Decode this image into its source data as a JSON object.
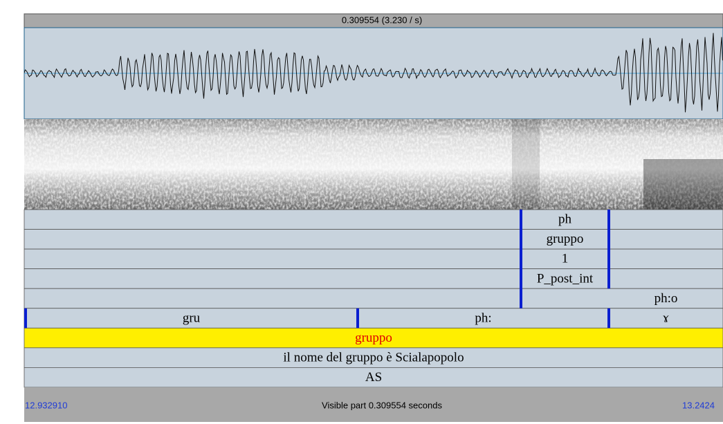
{
  "top_bar": {
    "selection": "0.309554 (3.230 / s)"
  },
  "tiers": [
    {
      "intervals": [
        {
          "text": "ph"
        }
      ]
    },
    {
      "intervals": [
        {
          "text": "gruppo"
        }
      ]
    },
    {
      "intervals": [
        {
          "text": "1"
        }
      ]
    },
    {
      "intervals": [
        {
          "text": "P_post_int"
        }
      ]
    },
    {
      "intervals": [
        {
          "text": "ph:o"
        }
      ]
    },
    {
      "intervals": [
        {
          "text": "gru"
        },
        {
          "text": "ph:"
        },
        {
          "text": "ɤ"
        }
      ]
    },
    {
      "intervals": [
        {
          "text": "gruppo"
        }
      ]
    },
    {
      "intervals": [
        {
          "text": "il nome del gruppo è Scialapopolo"
        }
      ]
    },
    {
      "intervals": [
        {
          "text": "AS"
        }
      ]
    }
  ],
  "bottom_bar": {
    "start_time": "12.932910",
    "visible": "Visible part 0.309554 seconds",
    "end_time": "13.2424"
  }
}
